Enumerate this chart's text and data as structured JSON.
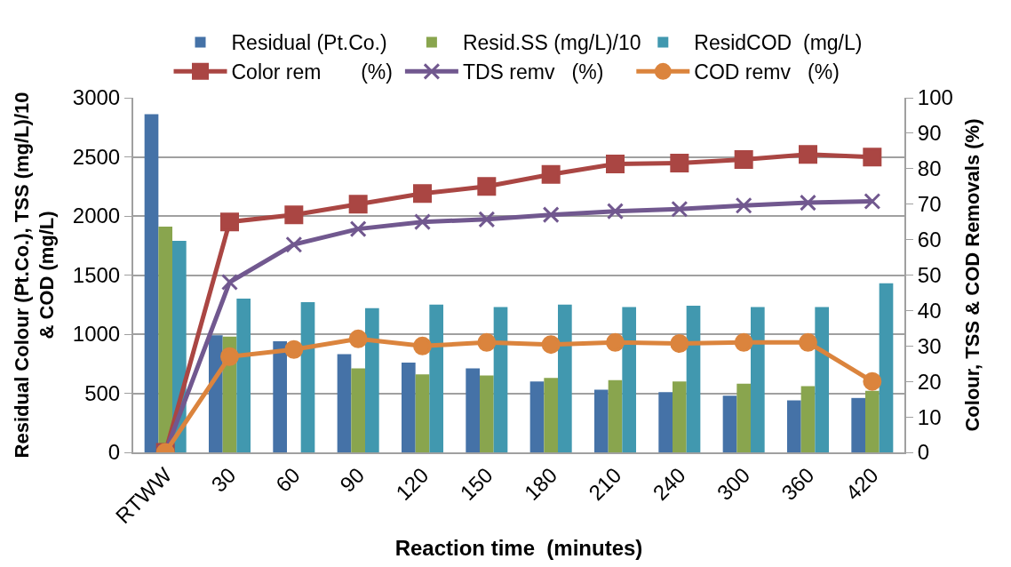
{
  "chart_data": {
    "type": "bar",
    "xlabel": "Reaction time  (minutes)",
    "ylabel": "Residual Colour (Pt.Co.), TSS (mg/L)/10\n& COD (mg/L)",
    "y2label": "Colour, TSS & COD Removals (%)",
    "categories": [
      "RTWW",
      "30",
      "60",
      "90",
      "120",
      "150",
      "180",
      "210",
      "240",
      "300",
      "360",
      "420"
    ],
    "ylim": [
      0,
      3000
    ],
    "yticks": [
      0,
      500,
      1000,
      1500,
      2000,
      2500,
      3000
    ],
    "y2lim": [
      0,
      100
    ],
    "y2ticks": [
      0,
      10,
      20,
      30,
      40,
      50,
      60,
      70,
      80,
      90,
      100
    ],
    "grid": "y",
    "legend": "top",
    "series": [
      {
        "name": "Residual (Pt.Co.)",
        "color": "#4572a7",
        "values": [
          2860,
          990,
          940,
          830,
          760,
          710,
          600,
          530,
          510,
          480,
          440,
          460
        ]
      },
      {
        "name": "Resid.SS (mg/L)/10",
        "color": "#89a54e",
        "values": [
          1910,
          980,
          null,
          710,
          660,
          650,
          630,
          610,
          600,
          580,
          560,
          520
        ]
      },
      {
        "name": "ResidCOD  (mg/L)",
        "color": "#4198af",
        "values": [
          1790,
          1300,
          1270,
          1220,
          1250,
          1230,
          1250,
          1230,
          1240,
          1230,
          1230,
          1430
        ]
      },
      {
        "name": "Color rem       (%)",
        "type": "line",
        "axis": "y2",
        "marker": "square",
        "color": "#aa4643",
        "values": [
          0,
          65,
          67,
          70,
          73,
          75,
          78.4,
          81.3,
          81.6,
          82.6,
          84,
          83.3
        ]
      },
      {
        "name": "TDS remv   (%)",
        "type": "line",
        "axis": "y2",
        "marker": "cross",
        "color": "#71588f",
        "values": [
          0,
          48,
          58.6,
          63,
          65,
          65.7,
          67,
          68,
          68.6,
          69.6,
          70.4,
          70.8
        ]
      },
      {
        "name": "COD remv   (%)",
        "type": "line",
        "axis": "y2",
        "marker": "circle",
        "color": "#db843d",
        "values": [
          0,
          27,
          29,
          32,
          30,
          31,
          30.4,
          31,
          30.7,
          31,
          31,
          20
        ]
      }
    ]
  }
}
